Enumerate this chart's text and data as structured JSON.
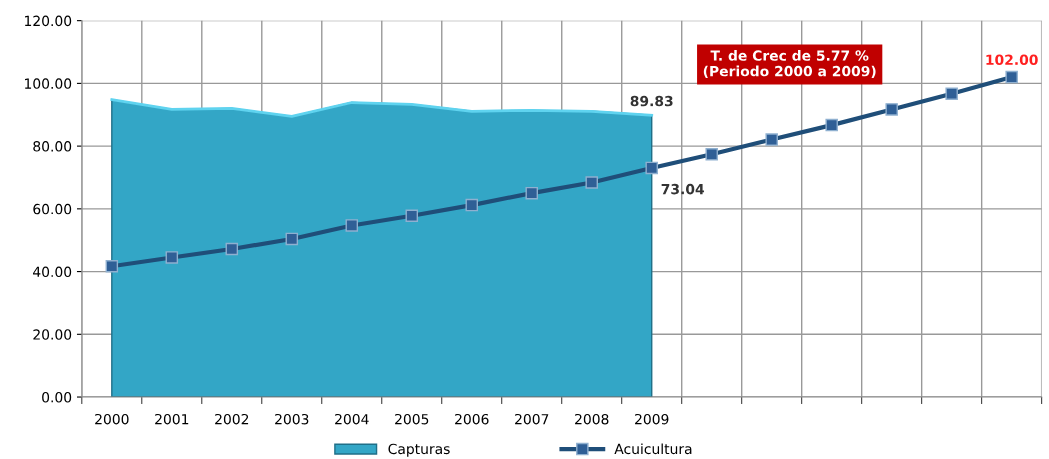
{
  "chart_data": {
    "type": "line",
    "categories": [
      "2000",
      "2001",
      "2002",
      "2003",
      "2004",
      "2005",
      "2006",
      "2007",
      "2008",
      "2009",
      null,
      null,
      null,
      null,
      null,
      null
    ],
    "series": [
      {
        "name": "Capturas",
        "type": "area",
        "color": "#33a6c6",
        "values": [
          94.8,
          91.7,
          92.0,
          89.5,
          93.9,
          93.3,
          91.1,
          91.4,
          91.1,
          89.83,
          null,
          null,
          null,
          null,
          null,
          null
        ],
        "value_labels": [
          null,
          null,
          null,
          null,
          null,
          null,
          null,
          null,
          null,
          "89.83",
          null,
          null,
          null,
          null,
          null,
          null
        ]
      },
      {
        "name": "Acuicultura",
        "color": "#1f4e79",
        "marker": "square",
        "values": [
          41.7,
          44.5,
          47.2,
          50.4,
          54.7,
          57.8,
          61.2,
          65.0,
          68.4,
          73.04,
          77.4,
          82.1,
          86.7,
          91.7,
          96.7,
          102.0
        ],
        "value_labels": [
          null,
          null,
          null,
          null,
          null,
          null,
          null,
          null,
          null,
          "73.04",
          null,
          null,
          null,
          null,
          null,
          "102.00"
        ]
      }
    ],
    "ylim": [
      0,
      120
    ],
    "yticks": [
      {
        "value": 0,
        "label": "0.00"
      },
      {
        "value": 20,
        "label": "20.00"
      },
      {
        "value": 40,
        "label": "40.00"
      },
      {
        "value": 60,
        "label": "60.00"
      },
      {
        "value": 80,
        "label": "80.00"
      },
      {
        "value": 100,
        "label": "100.00"
      },
      {
        "value": 120,
        "label": "120.00"
      }
    ],
    "annotations": [
      "T. de Crec de 5.77 %\n(Periodo 2000 a 2009)"
    ],
    "grid": true,
    "legend": "bottom",
    "line_style": "solid"
  }
}
